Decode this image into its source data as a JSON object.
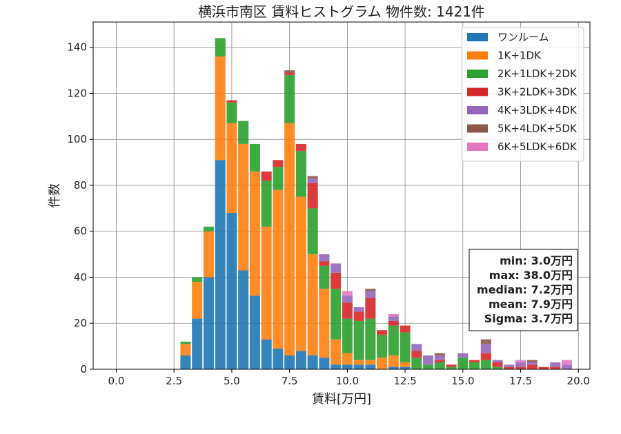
{
  "chart_data": {
    "type": "bar",
    "stacked": true,
    "title": "横浜市南区 賃料ヒストグラム 物件数: 1421件",
    "xlabel": "賃料[万円]",
    "ylabel": "件数",
    "xlim": [
      -1.0,
      20.5
    ],
    "ylim": [
      0,
      151
    ],
    "xticks": [
      0.0,
      2.5,
      5.0,
      7.5,
      10.0,
      12.5,
      15.0,
      17.5,
      20.0
    ],
    "xtick_labels": [
      "0.0",
      "2.5",
      "5.0",
      "7.5",
      "10.0",
      "12.5",
      "15.0",
      "17.5",
      "20.0"
    ],
    "yticks": [
      0,
      20,
      40,
      60,
      80,
      100,
      120,
      140
    ],
    "ytick_labels": [
      "0",
      "20",
      "40",
      "60",
      "80",
      "100",
      "120",
      "140"
    ],
    "grid": true,
    "legend_position": "top-right",
    "bin_width": 0.5,
    "bin_centers": [
      3.0,
      3.5,
      4.0,
      4.5,
      5.0,
      5.5,
      6.0,
      6.5,
      7.0,
      7.5,
      8.0,
      8.5,
      9.0,
      9.5,
      10.0,
      10.5,
      11.0,
      11.5,
      12.0,
      12.5,
      13.0,
      13.5,
      14.0,
      14.5,
      15.0,
      15.5,
      16.0,
      16.5,
      17.0,
      17.5,
      18.0,
      18.5,
      19.0,
      19.5
    ],
    "series": [
      {
        "name": "ワンルーム",
        "color": "#1f77b4",
        "values": [
          6,
          22,
          40,
          91,
          68,
          43,
          32,
          13,
          9,
          6,
          8,
          6,
          5,
          2,
          2,
          2,
          2,
          0,
          1,
          1,
          0,
          0,
          0,
          0,
          0,
          0,
          0,
          0,
          0,
          0,
          0,
          0,
          0,
          0
        ]
      },
      {
        "name": "1K+1DK",
        "color": "#ff7f0e",
        "values": [
          5,
          16,
          20,
          45,
          39,
          55,
          54,
          49,
          69,
          101,
          67,
          44,
          30,
          11,
          5,
          2,
          2,
          5,
          5,
          2,
          0,
          0,
          0,
          0,
          0,
          0,
          0,
          0,
          0,
          0,
          0,
          0,
          0,
          0
        ]
      },
      {
        "name": "2K+1LDK+2DK",
        "color": "#2ca02c",
        "values": [
          1,
          2,
          2,
          8,
          9,
          10,
          12,
          20,
          10,
          21,
          20,
          20,
          10,
          22,
          15,
          17,
          18,
          10,
          13,
          13,
          5,
          2,
          3,
          1,
          5,
          3,
          4,
          1,
          0,
          0,
          0,
          0,
          0,
          0
        ]
      },
      {
        "name": "3K+2LDK+3DK",
        "color": "#d62728",
        "values": [
          0,
          0,
          0,
          0,
          1,
          0,
          0,
          4,
          3,
          1,
          3,
          11,
          2,
          7,
          7,
          4,
          9,
          2,
          2,
          3,
          3,
          0,
          1,
          1,
          0,
          1,
          3,
          2,
          1,
          1,
          2,
          1,
          1,
          0
        ]
      },
      {
        "name": "4K+3LDK+4DK",
        "color": "#9467bd",
        "values": [
          0,
          0,
          0,
          0,
          0,
          0,
          0,
          0,
          0,
          0,
          0,
          2,
          3,
          4,
          3,
          2,
          3,
          0,
          2,
          0,
          3,
          4,
          2,
          0,
          2,
          0,
          4,
          1,
          1,
          2,
          1,
          0,
          2,
          2
        ]
      },
      {
        "name": "5K+4LDK+5DK",
        "color": "#8c564b",
        "values": [
          0,
          0,
          0,
          0,
          0,
          0,
          0,
          0,
          0,
          1,
          0,
          1,
          0,
          0,
          0,
          0,
          1,
          0,
          0,
          0,
          0,
          0,
          1,
          0,
          0,
          0,
          2,
          0,
          0,
          0,
          1,
          0,
          0,
          0
        ]
      },
      {
        "name": "6K+5LDK+6DK",
        "color": "#e377c2",
        "values": [
          0,
          0,
          0,
          0,
          0,
          0,
          0,
          0,
          0,
          0,
          0,
          0,
          0,
          0,
          2,
          0,
          0,
          0,
          1,
          0,
          0,
          0,
          0,
          0,
          0,
          0,
          0,
          0,
          0,
          1,
          0,
          0,
          0,
          2
        ]
      }
    ],
    "stats_box": [
      "min: 3.0万円",
      "max: 38.0万円",
      "median: 7.2万円",
      "mean: 7.9万円",
      "Sigma: 3.7万円"
    ]
  }
}
